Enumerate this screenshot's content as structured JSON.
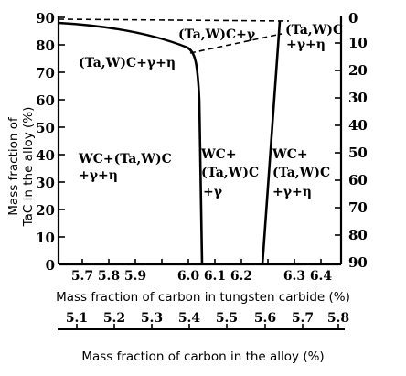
{
  "diagram": {
    "left_axis": {
      "label_line1": "Mass fraction of",
      "label_line2": "TaC in the alloy (%)",
      "ticks": [
        "90",
        "80",
        "70",
        "60",
        "50",
        "40",
        "30",
        "20",
        "10",
        "0"
      ]
    },
    "right_axis": {
      "ticks": [
        "0",
        "10",
        "20",
        "30",
        "40",
        "50",
        "60",
        "70",
        "80",
        "90"
      ]
    },
    "bottom_axis": {
      "label": "Mass fraction of carbon in tungsten carbide (%)",
      "ticks": [
        "5.7",
        "5.8",
        "5.9",
        "6.0",
        "6.1",
        "6.2",
        "6.3",
        "6.4"
      ]
    },
    "secondary_axis": {
      "label": "Mass fraction of carbon in the alloy (%)",
      "ticks": [
        "5.1",
        "5.2",
        "5.3",
        "5.4",
        "5.5",
        "5.6",
        "5.7",
        "5.8"
      ]
    },
    "regions": {
      "top_center": "(Ta,W)C+γ",
      "top_right_line1": "(Ta,W)C",
      "top_right_line2": "+γ+η",
      "left_upper": "(Ta,W)C+γ+η",
      "left_lower_line1": "WC+(Ta,W)C",
      "left_lower_line2": "+γ+η",
      "center_line1": "WC+",
      "center_line2": "(Ta,W)C",
      "center_line3": "+γ",
      "right_line1": "WC+",
      "right_line2": "(Ta,W)C",
      "right_line3": "+γ+η"
    }
  }
}
